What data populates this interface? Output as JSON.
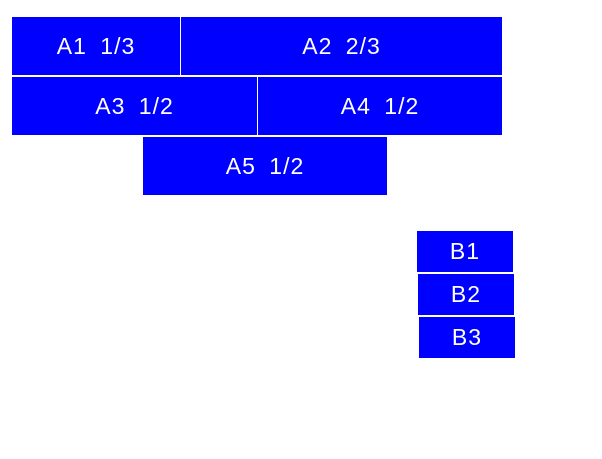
{
  "colors": {
    "block": "#0000ff",
    "text": "#ffffff",
    "background": "#ffffff"
  },
  "blocks_a": [
    {
      "label": "A1 1/3"
    },
    {
      "label": "A2 2/3"
    },
    {
      "label": "A3 1/2"
    },
    {
      "label": "A4 1/2"
    },
    {
      "label": "A5 1/2"
    }
  ],
  "blocks_b": [
    {
      "label": "B1"
    },
    {
      "label": "B2"
    },
    {
      "label": "B3"
    }
  ]
}
